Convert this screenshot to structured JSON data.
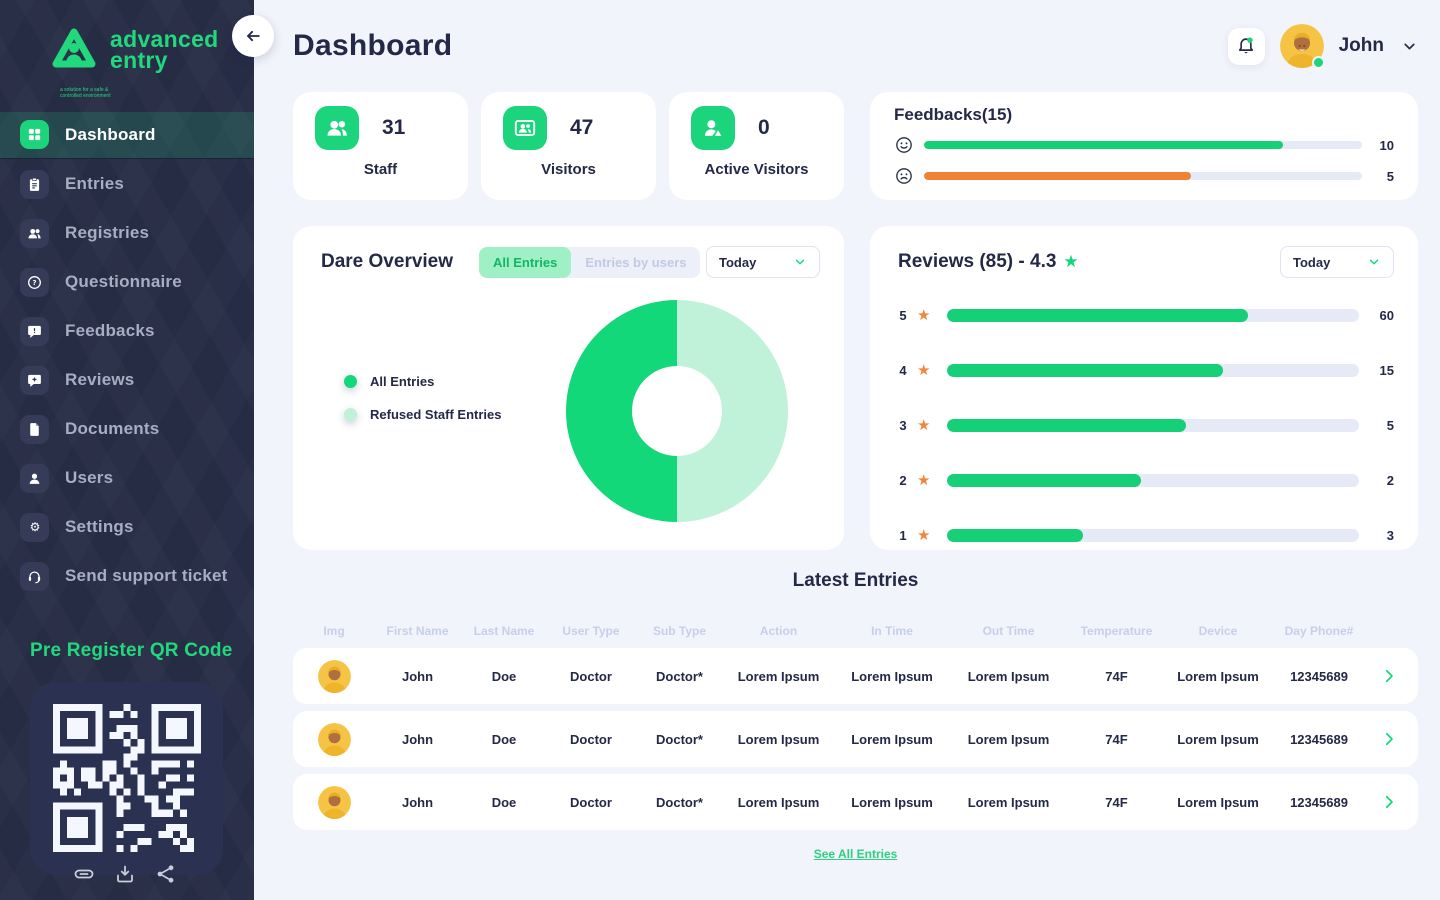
{
  "colors": {
    "brand_green": "#12d879",
    "light_green": "#bff2d9",
    "toggle_green_bg": "#a0f0c6",
    "orange": "#f08236",
    "sidebar_navy": "#272c45",
    "text_dark": "#232946",
    "page_bg": "#f2f4fb",
    "bar_track": "#e6eaf6"
  },
  "sidebar": {
    "logo": {
      "name_line1": "advanced",
      "name_line2": "entry",
      "tagline_line1": "a solution for a safe &",
      "tagline_line2": "controlled environment"
    },
    "items": [
      {
        "label": "Dashboard"
      },
      {
        "label": "Entries"
      },
      {
        "label": "Registries"
      },
      {
        "label": "Questionnaire"
      },
      {
        "label": "Feedbacks"
      },
      {
        "label": "Reviews"
      },
      {
        "label": "Documents"
      },
      {
        "label": "Users"
      },
      {
        "label": "Settings"
      },
      {
        "label": "Send support ticket"
      }
    ],
    "qr_heading": "Pre Register QR Code"
  },
  "header": {
    "title": "Dashboard",
    "user_name": "John"
  },
  "stats": [
    {
      "value": "31",
      "label": "Staff"
    },
    {
      "value": "47",
      "label": "Visitors"
    },
    {
      "value": "0",
      "label": "Active Visitors"
    }
  ],
  "feedbacks": {
    "title": "Feedbacks(15)",
    "rows": [
      {
        "mood": "happy",
        "value": "10",
        "fill_pct": 82
      },
      {
        "mood": "sad",
        "value": "5",
        "fill_pct": 61
      }
    ]
  },
  "overview": {
    "title": "Dare Overview",
    "tab_all": "All Entries",
    "tab_users": "Entries by users",
    "period": "Today",
    "legend": [
      {
        "label": "All Entries"
      },
      {
        "label": "Refused  Staff Entries"
      }
    ],
    "donut": {
      "type": "pie",
      "segments": [
        {
          "label": "All Entries",
          "pct": 50,
          "color": "#12d879"
        },
        {
          "label": "Refused Staff Entries",
          "pct": 50,
          "color": "#bff2d9"
        }
      ]
    }
  },
  "reviews": {
    "title": "Reviews (85) - 4.3",
    "period": "Today",
    "rows": [
      {
        "stars": "5",
        "count": "60",
        "fill_pct": 73
      },
      {
        "stars": "4",
        "count": "15",
        "fill_pct": 67
      },
      {
        "stars": "3",
        "count": "5",
        "fill_pct": 58
      },
      {
        "stars": "2",
        "count": "2",
        "fill_pct": 47
      },
      {
        "stars": "1",
        "count": "3",
        "fill_pct": 33
      }
    ]
  },
  "table": {
    "title": "Latest Entries",
    "headers": [
      "Img",
      "First Name",
      "Last Name",
      "User Type",
      "Sub Type",
      "Action",
      "In Time",
      "Out Time",
      "Temperature",
      "Device",
      "Day Phone#"
    ],
    "rows": [
      {
        "first_name": "John",
        "last_name": "Doe",
        "user_type": "Doctor",
        "sub_type": "Doctor*",
        "action": "Lorem Ipsum",
        "in_time": "Lorem Ipsum",
        "out_time": "Lorem Ipsum",
        "temperature": "74F",
        "device": "Lorem Ipsum",
        "day_phone": "12345689"
      },
      {
        "first_name": "John",
        "last_name": "Doe",
        "user_type": "Doctor",
        "sub_type": "Doctor*",
        "action": "Lorem Ipsum",
        "in_time": "Lorem Ipsum",
        "out_time": "Lorem Ipsum",
        "temperature": "74F",
        "device": "Lorem Ipsum",
        "day_phone": "12345689"
      },
      {
        "first_name": "John",
        "last_name": "Doe",
        "user_type": "Doctor",
        "sub_type": "Doctor*",
        "action": "Lorem Ipsum",
        "in_time": "Lorem Ipsum",
        "out_time": "Lorem Ipsum",
        "temperature": "74F",
        "device": "Lorem Ipsum",
        "day_phone": "12345689"
      }
    ],
    "see_all_label": "See All Entries"
  }
}
